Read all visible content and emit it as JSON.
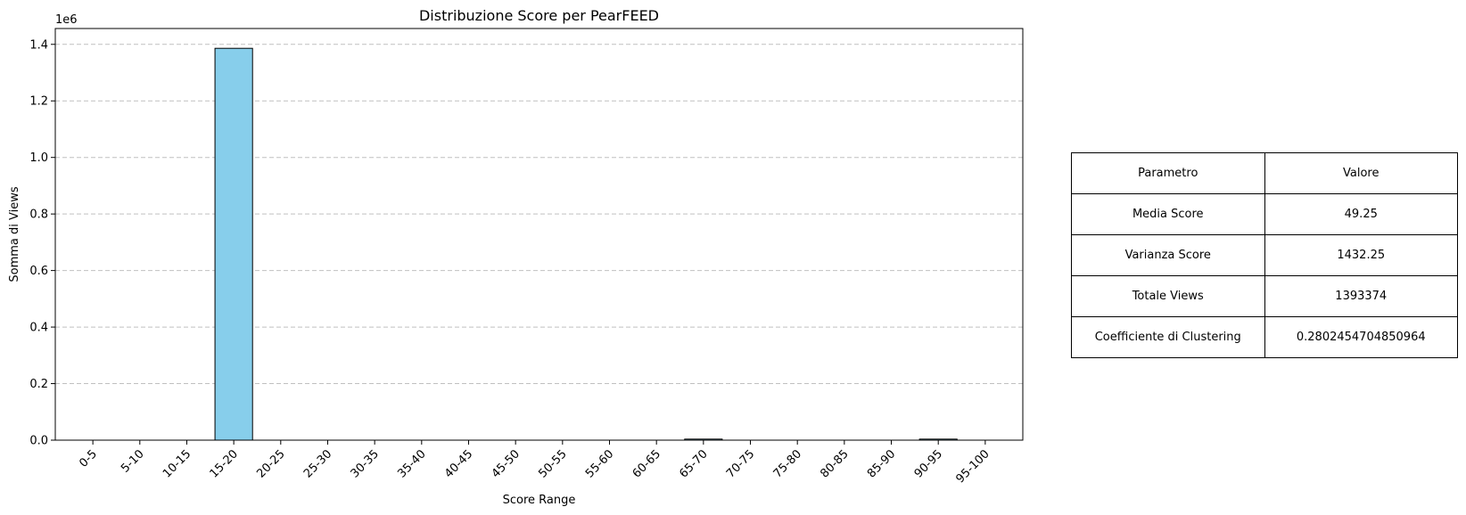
{
  "chart_data": {
    "type": "bar",
    "title": "Distribuzione Score per PearFEED",
    "xlabel": "Score Range",
    "ylabel": "Somma di Views",
    "y_offset_label": "1e6",
    "categories": [
      "0-5",
      "5-10",
      "10-15",
      "15-20",
      "20-25",
      "25-30",
      "30-35",
      "35-40",
      "40-45",
      "45-50",
      "50-55",
      "55-60",
      "60-65",
      "65-70",
      "70-75",
      "75-80",
      "80-85",
      "85-90",
      "90-95",
      "95-100"
    ],
    "values": [
      0,
      0,
      0,
      1386000,
      0,
      0,
      0,
      0,
      0,
      0,
      0,
      0,
      0,
      3700,
      0,
      0,
      0,
      0,
      3674,
      0
    ],
    "ylim": [
      0,
      1456000
    ],
    "yticks": [
      0,
      200000,
      400000,
      600000,
      800000,
      1000000,
      1200000,
      1400000
    ],
    "ytick_labels": [
      "0.0",
      "0.2",
      "0.4",
      "0.6",
      "0.8",
      "1.0",
      "1.2",
      "1.4"
    ],
    "grid": "y-dashed",
    "bar_color": "#87CEEB",
    "edge_color": "#000000"
  },
  "table": {
    "header": {
      "param": "Parametro",
      "value": "Valore"
    },
    "rows": [
      {
        "param": "Media Score",
        "value": "49.25"
      },
      {
        "param": "Varianza Score",
        "value": "1432.25"
      },
      {
        "param": "Totale Views",
        "value": "1393374"
      },
      {
        "param": "Coefficiente di Clustering",
        "value": "0.2802454704850964"
      }
    ]
  }
}
